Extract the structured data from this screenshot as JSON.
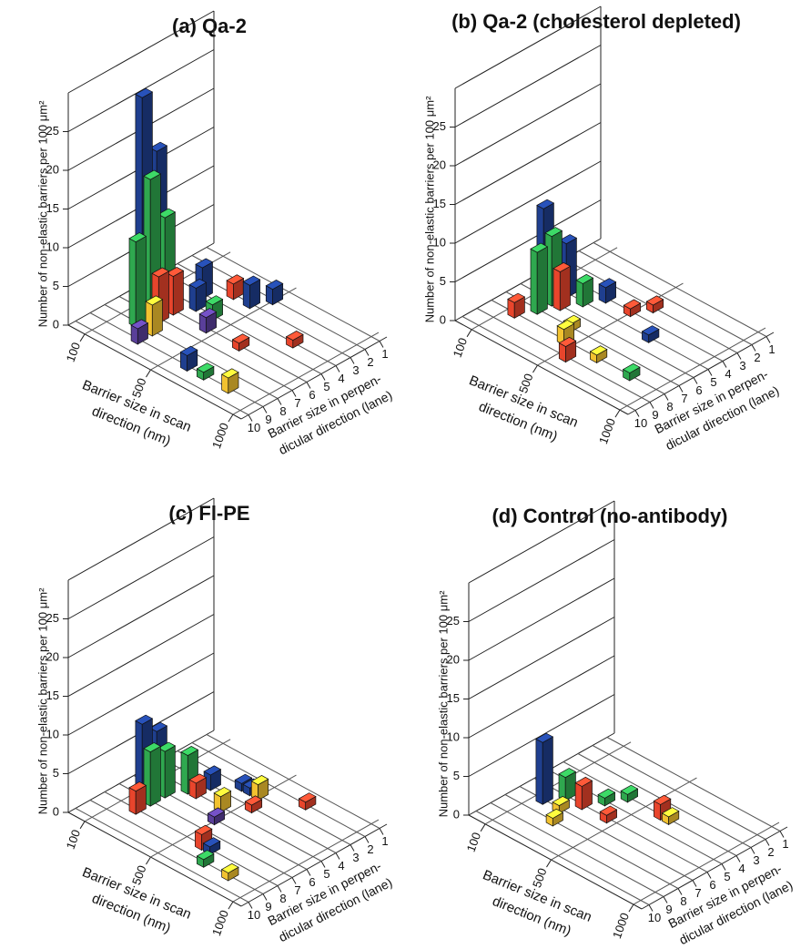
{
  "chart_data": [
    {
      "type": "bar3d",
      "title": "(a) Qa-2",
      "ylabel": "Number of non-elastic barriers per 100 μm²",
      "xlabel": [
        "Barrier size in scan",
        "direction (nm)"
      ],
      "zlabel": [
        "Barrier size in perpen-",
        "dicular direction (lane)"
      ],
      "xlim": [
        0,
        1050
      ],
      "xticks": [
        100,
        500,
        1000
      ],
      "zlim": [
        0.5,
        10.5
      ],
      "zticks": [
        1,
        2,
        3,
        4,
        5,
        6,
        7,
        8,
        9,
        10
      ],
      "ylim": [
        0,
        30
      ],
      "yticks": [
        0,
        5,
        10,
        15,
        20,
        25
      ],
      "grid": true,
      "bars": [
        {
          "x": 150,
          "z": 7,
          "value": 28,
          "color": "#1f3f8f"
        },
        {
          "x": 150,
          "z": 6,
          "value": 20,
          "color": "#1f3f8f"
        },
        {
          "x": 200,
          "z": 7,
          "value": 18,
          "color": "#2fa84f"
        },
        {
          "x": 200,
          "z": 6,
          "value": 12,
          "color": "#2fa84f"
        },
        {
          "x": 200,
          "z": 8,
          "value": 11,
          "color": "#2fa84f"
        },
        {
          "x": 250,
          "z": 7,
          "value": 6,
          "color": "#e8452c"
        },
        {
          "x": 250,
          "z": 6,
          "value": 5,
          "color": "#e8452c"
        },
        {
          "x": 300,
          "z": 8,
          "value": 4,
          "color": "#f2c230"
        },
        {
          "x": 300,
          "z": 5,
          "value": 3,
          "color": "#1f3f8f"
        },
        {
          "x": 250,
          "z": 4,
          "value": 4,
          "color": "#1f3f8f"
        },
        {
          "x": 400,
          "z": 5,
          "value": 2,
          "color": "#2fa84f"
        },
        {
          "x": 350,
          "z": 3,
          "value": 2,
          "color": "#e8452c"
        },
        {
          "x": 450,
          "z": 3,
          "value": 3,
          "color": "#1f3f8f"
        },
        {
          "x": 500,
          "z": 2,
          "value": 2,
          "color": "#1f3f8f"
        },
        {
          "x": 300,
          "z": 9,
          "value": 2,
          "color": "#5a3f9a"
        },
        {
          "x": 450,
          "z": 6,
          "value": 2,
          "color": "#5a3f9a"
        },
        {
          "x": 600,
          "z": 9,
          "value": 2,
          "color": "#1f3f8f"
        },
        {
          "x": 700,
          "z": 9,
          "value": 1,
          "color": "#2fa84f"
        },
        {
          "x": 650,
          "z": 6,
          "value": 1,
          "color": "#e8452c"
        },
        {
          "x": 850,
          "z": 9,
          "value": 2,
          "color": "#f2c230"
        },
        {
          "x": 800,
          "z": 4,
          "value": 1,
          "color": "#e8452c"
        }
      ]
    },
    {
      "type": "bar3d",
      "title": "(b) Qa-2 (cholesterol depleted)",
      "ylabel": "Number of non-elastic barriers per 100 μm²",
      "xlabel": [
        "Barrier size in scan",
        "direction (nm)"
      ],
      "zlabel": [
        "Barrier size in perpen-",
        "dicular direction (lane)"
      ],
      "xlim": [
        0,
        1050
      ],
      "xticks": [
        100,
        500,
        1000
      ],
      "zlim": [
        0.5,
        10.5
      ],
      "zticks": [
        1,
        2,
        3,
        4,
        5,
        6,
        7,
        8,
        9,
        10
      ],
      "ylim": [
        0,
        30
      ],
      "yticks": [
        0,
        5,
        10,
        15,
        20,
        25
      ],
      "grid": true,
      "bars": [
        {
          "x": 150,
          "z": 6,
          "value": 12,
          "color": "#1f3f8f"
        },
        {
          "x": 200,
          "z": 6,
          "value": 9,
          "color": "#2fa84f"
        },
        {
          "x": 200,
          "z": 7,
          "value": 8,
          "color": "#2fa84f"
        },
        {
          "x": 200,
          "z": 5,
          "value": 7,
          "color": "#1f3f8f"
        },
        {
          "x": 250,
          "z": 6,
          "value": 5,
          "color": "#e8452c"
        },
        {
          "x": 150,
          "z": 8,
          "value": 2,
          "color": "#e8452c"
        },
        {
          "x": 300,
          "z": 5,
          "value": 3,
          "color": "#2fa84f"
        },
        {
          "x": 350,
          "z": 4,
          "value": 2,
          "color": "#1f3f8f"
        },
        {
          "x": 400,
          "z": 7,
          "value": 1,
          "color": "#f2c230"
        },
        {
          "x": 450,
          "z": 8,
          "value": 2,
          "color": "#f2c230"
        },
        {
          "x": 500,
          "z": 4,
          "value": 1,
          "color": "#e8452c"
        },
        {
          "x": 550,
          "z": 3,
          "value": 1,
          "color": "#e8452c"
        },
        {
          "x": 550,
          "z": 9,
          "value": 2,
          "color": "#e8452c"
        },
        {
          "x": 650,
          "z": 8,
          "value": 1,
          "color": "#f2c230"
        },
        {
          "x": 700,
          "z": 5,
          "value": 1,
          "color": "#1f3f8f"
        },
        {
          "x": 850,
          "z": 8,
          "value": 1,
          "color": "#2fa84f"
        }
      ]
    },
    {
      "type": "bar3d",
      "title": "(c) Fl-PE",
      "ylabel": "Number of non-elastic barriers per 100 μm²",
      "xlabel": [
        "Barrier size in scan",
        "direction (nm)"
      ],
      "zlabel": [
        "Barrier size in perpen-",
        "dicular direction (lane)"
      ],
      "xlim": [
        0,
        1050
      ],
      "xticks": [
        100,
        500,
        1000
      ],
      "zlim": [
        0.5,
        10.5
      ],
      "zticks": [
        1,
        2,
        3,
        4,
        5,
        6,
        7,
        8,
        9,
        10
      ],
      "ylim": [
        0,
        30
      ],
      "yticks": [
        0,
        5,
        10,
        15,
        20,
        25
      ],
      "grid": true,
      "bars": [
        {
          "x": 150,
          "z": 7,
          "value": 10,
          "color": "#1f3f8f"
        },
        {
          "x": 150,
          "z": 6,
          "value": 8,
          "color": "#1f3f8f"
        },
        {
          "x": 200,
          "z": 7,
          "value": 7,
          "color": "#2fa84f"
        },
        {
          "x": 200,
          "z": 6,
          "value": 6,
          "color": "#2fa84f"
        },
        {
          "x": 250,
          "z": 5,
          "value": 5,
          "color": "#2fa84f"
        },
        {
          "x": 200,
          "z": 8,
          "value": 3,
          "color": "#e8452c"
        },
        {
          "x": 300,
          "z": 5,
          "value": 2,
          "color": "#e8452c"
        },
        {
          "x": 300,
          "z": 4,
          "value": 2,
          "color": "#1f3f8f"
        },
        {
          "x": 400,
          "z": 3,
          "value": 1,
          "color": "#1f3f8f"
        },
        {
          "x": 450,
          "z": 3,
          "value": 1,
          "color": "#1f3f8f"
        },
        {
          "x": 450,
          "z": 5,
          "value": 2,
          "color": "#f2c230"
        },
        {
          "x": 500,
          "z": 6,
          "value": 1,
          "color": "#5a3f9a"
        },
        {
          "x": 550,
          "z": 4,
          "value": 1,
          "color": "#e8452c"
        },
        {
          "x": 650,
          "z": 8,
          "value": 1,
          "color": "#1f3f8f"
        },
        {
          "x": 700,
          "z": 9,
          "value": 1,
          "color": "#2fa84f"
        },
        {
          "x": 600,
          "z": 8,
          "value": 2,
          "color": "#e8452c"
        },
        {
          "x": 850,
          "z": 9,
          "value": 1,
          "color": "#f2c230"
        },
        {
          "x": 700,
          "z": 2,
          "value": 1,
          "color": "#e8452c"
        },
        {
          "x": 500,
          "z": 3,
          "value": 2,
          "color": "#f2c230"
        }
      ]
    },
    {
      "type": "bar3d",
      "title": "(d) Control (no-antibody)",
      "ylabel": "Number of non-elastic barriers per 100 μm²",
      "xlabel": [
        "Barrier size in scan",
        "direction (nm)"
      ],
      "zlabel": [
        "Barrier size in perpen-",
        "dicular direction (lane)"
      ],
      "xlim": [
        0,
        1050
      ],
      "xticks": [
        100,
        500,
        1000
      ],
      "zlim": [
        0.5,
        10.5
      ],
      "zticks": [
        1,
        2,
        3,
        4,
        5,
        6,
        7,
        8,
        9,
        10
      ],
      "ylim": [
        0,
        30
      ],
      "yticks": [
        0,
        5,
        10,
        15,
        20,
        25
      ],
      "grid": true,
      "bars": [
        {
          "x": 150,
          "z": 7,
          "value": 8,
          "color": "#1f3f8f"
        },
        {
          "x": 200,
          "z": 6,
          "value": 3,
          "color": "#2fa84f"
        },
        {
          "x": 300,
          "z": 6,
          "value": 3,
          "color": "#e8452c"
        },
        {
          "x": 250,
          "z": 7,
          "value": 1,
          "color": "#f2c230"
        },
        {
          "x": 350,
          "z": 5,
          "value": 1,
          "color": "#2fa84f"
        },
        {
          "x": 400,
          "z": 4,
          "value": 1,
          "color": "#2fa84f"
        },
        {
          "x": 300,
          "z": 8,
          "value": 1,
          "color": "#f2c230"
        },
        {
          "x": 450,
          "z": 6,
          "value": 1,
          "color": "#e8452c"
        },
        {
          "x": 600,
          "z": 4,
          "value": 2,
          "color": "#e8452c"
        },
        {
          "x": 650,
          "z": 4,
          "value": 1,
          "color": "#f2c230"
        }
      ]
    }
  ]
}
